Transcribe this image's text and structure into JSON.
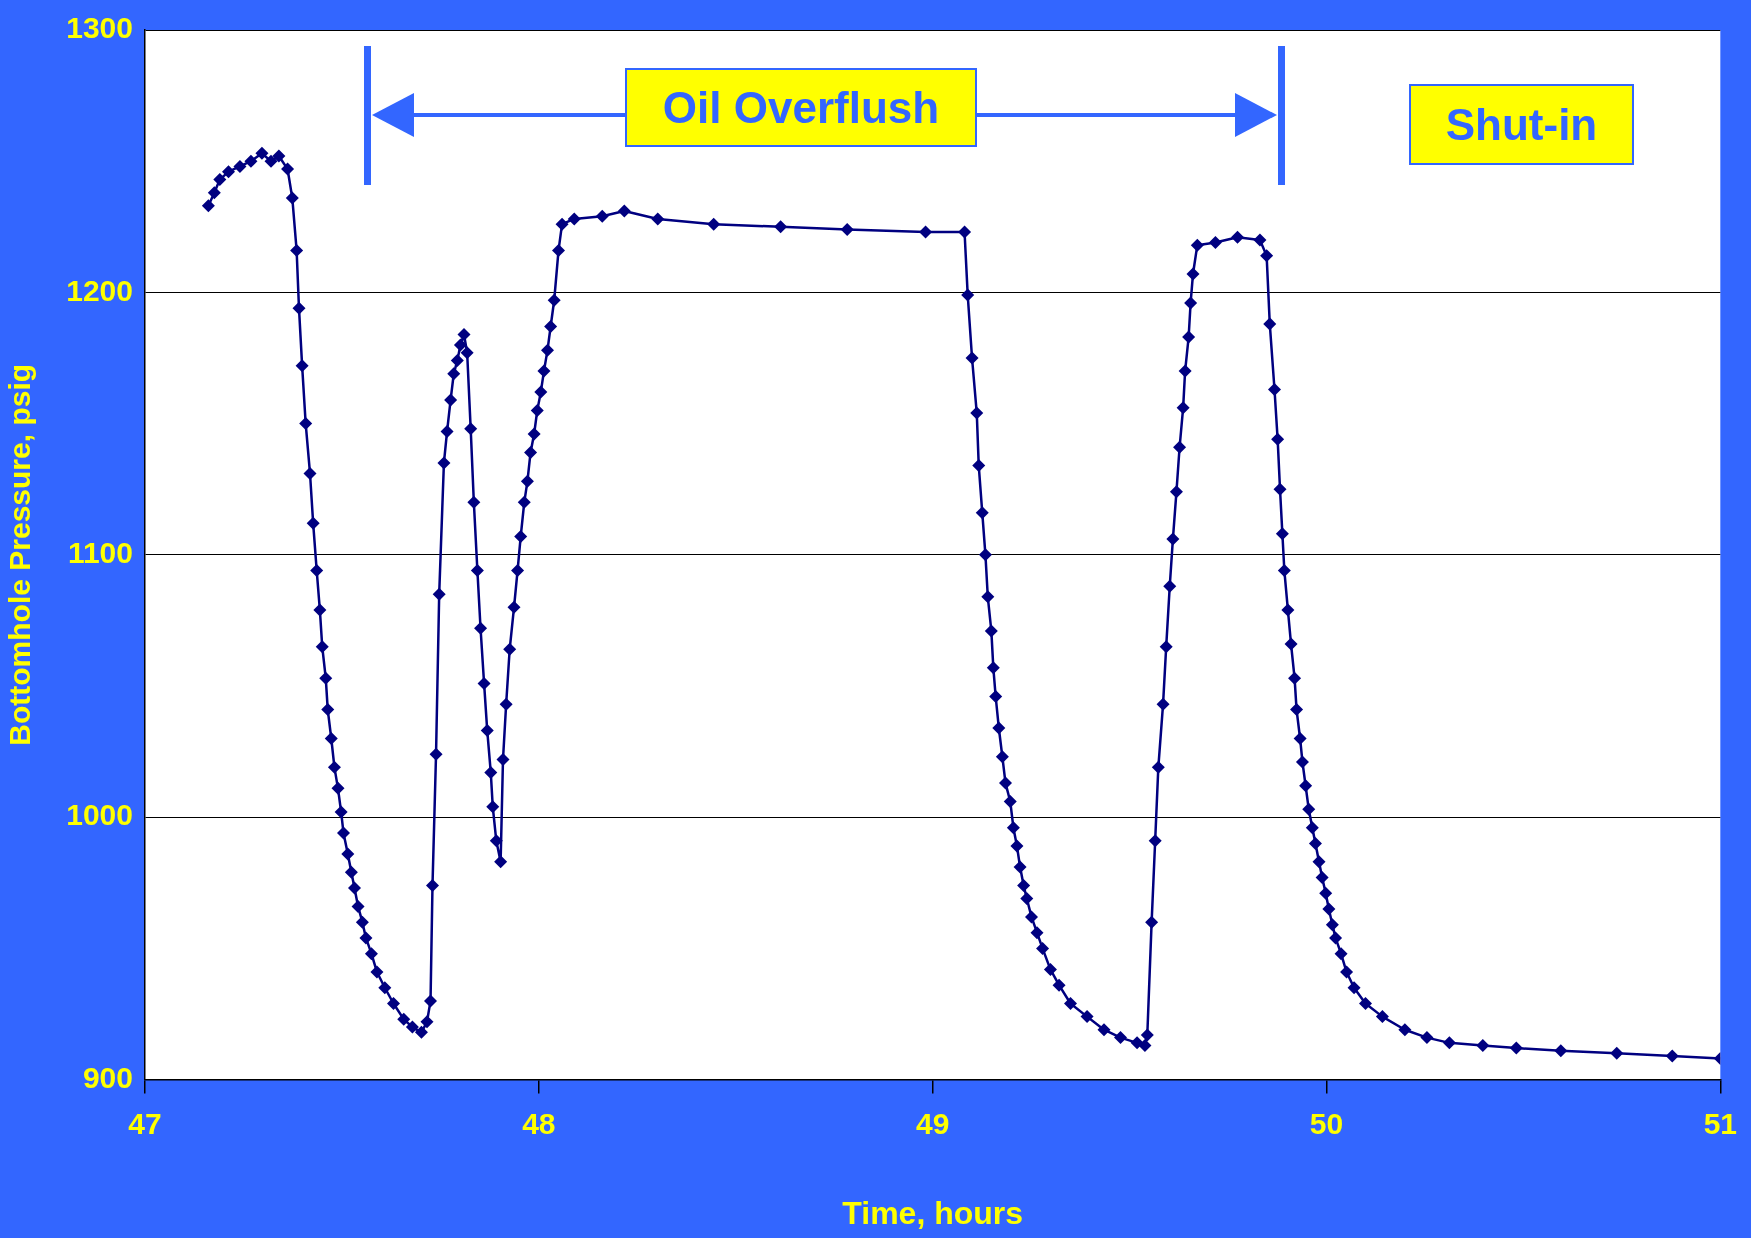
{
  "chart_data": {
    "type": "line",
    "xlabel": "Time, hours",
    "ylabel": "Bottomhole Pressure, psig",
    "xlim": [
      47,
      51
    ],
    "xticks": [
      47,
      48,
      49,
      50,
      51
    ],
    "ylim": [
      900,
      1300
    ],
    "yticks": [
      900,
      1000,
      1100,
      1200,
      1300
    ],
    "grid": "y",
    "legend": false,
    "marker": "diamond",
    "line_style": "solid",
    "annotations": [
      "Oil Overflush",
      "Shut-in"
    ],
    "series": [
      {
        "color": "#000080",
        "x": [
          47.161,
          47.176,
          47.19,
          47.212,
          47.241,
          47.269,
          47.297,
          47.32,
          47.34,
          47.362,
          47.374,
          47.385,
          47.391,
          47.399,
          47.408,
          47.419,
          47.427,
          47.436,
          47.444,
          47.45,
          47.459,
          47.464,
          47.473,
          47.481,
          47.49,
          47.498,
          47.504,
          47.515,
          47.524,
          47.532,
          47.541,
          47.552,
          47.561,
          47.575,
          47.589,
          47.609,
          47.631,
          47.657,
          47.679,
          47.702,
          47.716,
          47.725,
          47.73,
          47.739,
          47.747,
          47.759,
          47.767,
          47.776,
          47.784,
          47.793,
          47.801,
          47.81,
          47.818,
          47.827,
          47.835,
          47.844,
          47.852,
          47.861,
          47.869,
          47.878,
          47.883,
          47.892,
          47.903,
          47.909,
          47.917,
          47.926,
          47.937,
          47.946,
          47.954,
          47.963,
          47.971,
          47.979,
          47.988,
          47.996,
          48.005,
          48.013,
          48.022,
          48.03,
          48.039,
          48.05,
          48.059,
          48.09,
          48.161,
          48.217,
          48.302,
          48.444,
          48.614,
          48.783,
          48.982,
          49.081,
          49.089,
          49.1,
          49.112,
          49.117,
          49.126,
          49.134,
          49.14,
          49.149,
          49.154,
          49.16,
          49.168,
          49.177,
          49.185,
          49.197,
          49.205,
          49.214,
          49.222,
          49.231,
          49.239,
          49.251,
          49.265,
          49.279,
          49.299,
          49.321,
          49.35,
          49.392,
          49.435,
          49.477,
          49.519,
          49.539,
          49.545,
          49.556,
          49.565,
          49.573,
          49.585,
          49.593,
          49.602,
          49.61,
          49.619,
          49.627,
          49.636,
          49.641,
          49.65,
          49.655,
          49.661,
          49.672,
          49.718,
          49.774,
          49.831,
          49.848,
          49.856,
          49.868,
          49.876,
          49.882,
          49.888,
          49.893,
          49.902,
          49.91,
          49.919,
          49.924,
          49.933,
          49.939,
          49.947,
          49.955,
          49.964,
          49.972,
          49.981,
          49.989,
          49.998,
          50.006,
          50.015,
          50.023,
          50.037,
          50.051,
          50.07,
          50.099,
          50.142,
          50.199,
          50.255,
          50.312,
          50.397,
          50.482,
          50.595,
          50.737,
          50.878,
          51.0
        ],
        "values": [
          1233,
          1238,
          1243,
          1246,
          1248,
          1250,
          1253,
          1250,
          1252,
          1247,
          1236,
          1216,
          1194,
          1172,
          1150,
          1131,
          1112,
          1094,
          1079,
          1065,
          1053,
          1041,
          1030,
          1019,
          1011,
          1002,
          994,
          986,
          979,
          973,
          966,
          960,
          954,
          948,
          941,
          935,
          929,
          923,
          920,
          918,
          922,
          930,
          974,
          1024,
          1085,
          1135,
          1147,
          1159,
          1169,
          1174,
          1180,
          1184,
          1177,
          1148,
          1120,
          1094,
          1072,
          1051,
          1033,
          1017,
          1004,
          991,
          983,
          1022,
          1043,
          1064,
          1080,
          1094,
          1107,
          1120,
          1128,
          1139,
          1146,
          1155,
          1162,
          1170,
          1178,
          1187,
          1197,
          1216,
          1226,
          1228,
          1229,
          1231,
          1228,
          1226,
          1225,
          1224,
          1223,
          1223,
          1199,
          1175,
          1154,
          1134,
          1116,
          1100,
          1084,
          1071,
          1057,
          1046,
          1034,
          1023,
          1013,
          1006,
          996,
          989,
          981,
          974,
          969,
          962,
          956,
          950,
          942,
          936,
          929,
          924,
          919,
          916,
          914,
          913,
          917,
          960,
          991,
          1019,
          1043,
          1065,
          1088,
          1106,
          1124,
          1141,
          1156,
          1170,
          1183,
          1196,
          1207,
          1218,
          1219,
          1221,
          1220,
          1214,
          1188,
          1163,
          1144,
          1125,
          1108,
          1094,
          1079,
          1066,
          1053,
          1041,
          1030,
          1021,
          1012,
          1003,
          996,
          990,
          983,
          977,
          971,
          965,
          959,
          954,
          948,
          941,
          935,
          929,
          924,
          919,
          916,
          914,
          913,
          912,
          911,
          910,
          909,
          908
        ]
      }
    ]
  }
}
